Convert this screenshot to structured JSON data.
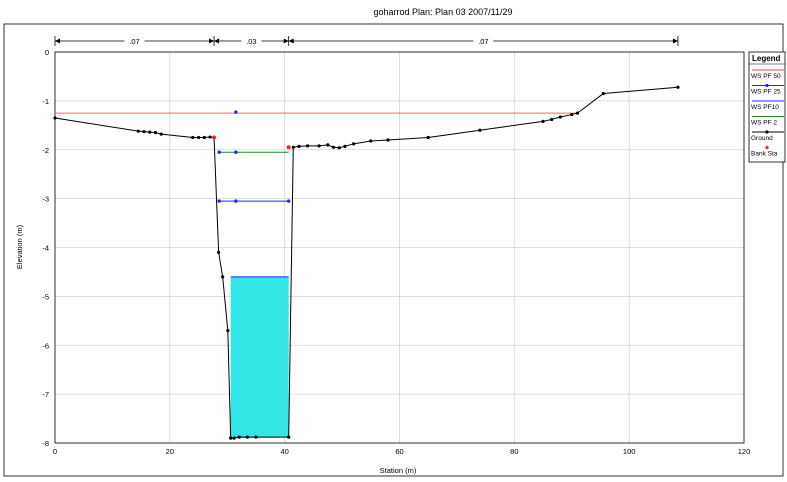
{
  "chart_data": {
    "type": "line",
    "title": "goharrod      Plan: Plan 03    2007/11/29",
    "xlabel": "Station (m)",
    "ylabel": "Elevation (m)",
    "xlim": [
      0,
      120
    ],
    "ylim": [
      -8,
      0
    ],
    "x_ticks": [
      "0",
      "20",
      "40",
      "60",
      "80",
      "100",
      "120"
    ],
    "y_ticks": [
      "0",
      "-1",
      "-2",
      "-3",
      "-4",
      "-5",
      "-6",
      "-7",
      "-8"
    ],
    "grid": true,
    "legend_position": "right",
    "legend": {
      "title": "Legend",
      "entries": [
        {
          "label": "WS PF 50",
          "color": "#ff4444",
          "marker": "none"
        },
        {
          "label": "WS PF 25",
          "color": "#2222ff",
          "marker": "dot"
        },
        {
          "label": "WS PF10",
          "color": "#2222ff",
          "marker": "none"
        },
        {
          "label": "WS PF 2",
          "color": "#228822",
          "marker": "none"
        },
        {
          "label": "Ground",
          "color": "#000000",
          "marker": "dot"
        },
        {
          "label": "Bank Sta",
          "color": "#ff2222",
          "marker": "dot_only"
        }
      ]
    },
    "mannings_n": [
      {
        "label": ".07",
        "from": 0,
        "to": 27.7
      },
      {
        "label": ".03",
        "from": 27.7,
        "to": 40.7
      },
      {
        "label": ".07",
        "from": 40.7,
        "to": 108.5
      }
    ],
    "ground": {
      "x": [
        0,
        14.5,
        15.5,
        16.5,
        17.5,
        18.5,
        24,
        25,
        26,
        27,
        27.7,
        28.5,
        29.2,
        30.1,
        30.6,
        31.2,
        32.1,
        33.5,
        35,
        40.7,
        41.5,
        42.5,
        44,
        46,
        47.5,
        48.5,
        49.5,
        50.5,
        52,
        55,
        58,
        65,
        74,
        85,
        86.5,
        88,
        90,
        91,
        95.5,
        108.5
      ],
      "y": [
        -1.35,
        -1.62,
        -1.63,
        -1.64,
        -1.65,
        -1.68,
        -1.75,
        -1.75,
        -1.75,
        -1.74,
        -1.75,
        -4.1,
        -4.6,
        -5.7,
        -7.9,
        -7.9,
        -7.88,
        -7.88,
        -7.88,
        -7.88,
        -1.95,
        -1.93,
        -1.92,
        -1.92,
        -1.9,
        -1.95,
        -1.96,
        -1.93,
        -1.88,
        -1.82,
        -1.8,
        -1.75,
        -1.6,
        -1.42,
        -1.38,
        -1.33,
        -1.28,
        -1.25,
        -0.85,
        -0.72
      ]
    },
    "bank_stations": [
      {
        "x": 27.7,
        "y": -1.75
      },
      {
        "x": 40.7,
        "y": -1.95
      }
    ],
    "water_surfaces": [
      {
        "name": "WS PF 50",
        "elevation": -1.25,
        "x_from": 0,
        "x_to": 91
      },
      {
        "name": "WS PF 25",
        "elevation": -2.05,
        "x_from": 28.6,
        "x_to": 40.7
      },
      {
        "name": "WS PF10",
        "elevation": -3.05,
        "x_from": 28.9,
        "x_to": 40.7
      },
      {
        "name": "WS PF 2",
        "elevation": -4.6,
        "x_from": 30.6,
        "x_to": 40.7
      }
    ],
    "ws_markers": [
      {
        "x": 31.5,
        "y": -1.23
      },
      {
        "x": 31.5,
        "y": -2.05
      },
      {
        "x": 31.5,
        "y": -3.05
      },
      {
        "x": 28.6,
        "y": -2.05
      },
      {
        "x": 28.6,
        "y": -3.05
      },
      {
        "x": 40.7,
        "y": -3.05
      }
    ],
    "fill_color": "#33e6e6"
  }
}
